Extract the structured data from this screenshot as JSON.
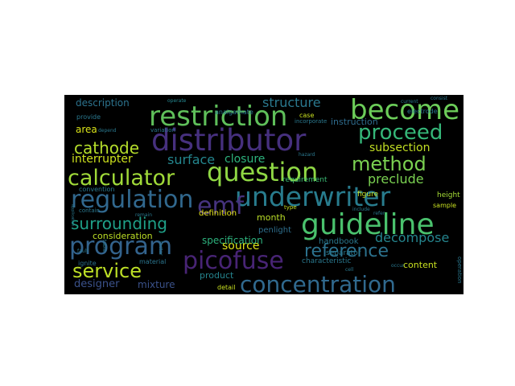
{
  "palette": {
    "background": "#000000",
    "green": "#5ec962",
    "teal": "#21918c",
    "blue": "#3b6a8f",
    "purple": "#482677",
    "deep_purple": "#440154",
    "yellow": "#c8e020"
  },
  "words": [
    {
      "text": "restriction",
      "color": "#5fbf5a"
    },
    {
      "text": "become",
      "color": "#6ccd59"
    },
    {
      "text": "distributor",
      "color": "#46307e"
    },
    {
      "text": "proceed",
      "color": "#35b779"
    },
    {
      "text": "cathode",
      "color": "#b5de2b"
    },
    {
      "text": "method",
      "color": "#7ad151"
    },
    {
      "text": "calculator",
      "color": "#a0da39"
    },
    {
      "text": "question",
      "color": "#8fd744"
    },
    {
      "text": "regulation",
      "color": "#31688e"
    },
    {
      "text": "underwriter",
      "color": "#287c8e"
    },
    {
      "text": "emf",
      "color": "#46337e"
    },
    {
      "text": "guideline",
      "color": "#4ac16d"
    },
    {
      "text": "surrounding",
      "color": "#1fa088"
    },
    {
      "text": "program",
      "color": "#33638d"
    },
    {
      "text": "reference",
      "color": "#2c728e"
    },
    {
      "text": "picofuse",
      "color": "#482475"
    },
    {
      "text": "service",
      "color": "#bddf26"
    },
    {
      "text": "concentration",
      "color": "#30698e"
    },
    {
      "text": "structure",
      "color": "#2a788e"
    },
    {
      "text": "interrupter",
      "color": "#cde11d"
    },
    {
      "text": "surface",
      "color": "#24868e"
    },
    {
      "text": "closure",
      "color": "#2db27d"
    },
    {
      "text": "subsection",
      "color": "#c2df23"
    },
    {
      "text": "preclude",
      "color": "#7ad151"
    },
    {
      "text": "decompose",
      "color": "#25858e"
    },
    {
      "text": "description",
      "color": "#2c738e"
    },
    {
      "text": "area",
      "color": "#d8e219"
    },
    {
      "text": "instruction",
      "color": "#2f6c8e"
    },
    {
      "text": "requirement",
      "color": "#3bbb75"
    },
    {
      "text": "figure",
      "color": "#c2df23"
    },
    {
      "text": "month",
      "color": "#bade28"
    },
    {
      "text": "penlight",
      "color": "#2e6f8e"
    },
    {
      "text": "source",
      "color": "#dde318"
    },
    {
      "text": "specification",
      "color": "#2db27d"
    },
    {
      "text": "handbook",
      "color": "#2a788e"
    },
    {
      "text": "definition",
      "color": "#e5e419"
    },
    {
      "text": "consideration",
      "color": "#bddf26"
    },
    {
      "text": "content",
      "color": "#c8e020"
    },
    {
      "text": "designer",
      "color": "#3b528b"
    },
    {
      "text": "mixture",
      "color": "#3b528b"
    },
    {
      "text": "product",
      "color": "#25848e"
    },
    {
      "text": "characteristic",
      "color": "#2a788e"
    },
    {
      "text": "separator",
      "color": "#2a788e"
    },
    {
      "text": "detail",
      "color": "#c8e020"
    },
    {
      "text": "material",
      "color": "#2b758e"
    },
    {
      "text": "ignite",
      "color": "#2c728e"
    },
    {
      "text": "convention",
      "color": "#2a788e"
    },
    {
      "text": "contain",
      "color": "#2a788e"
    },
    {
      "text": "height",
      "color": "#a5db36"
    },
    {
      "text": "sample",
      "color": "#c8e020"
    },
    {
      "text": "analgamate",
      "color": "#2a788e"
    },
    {
      "text": "provide",
      "color": "#2a788e"
    },
    {
      "text": "operate",
      "color": "#24868e"
    },
    {
      "text": "depend",
      "color": "#2a788e"
    },
    {
      "text": "variation",
      "color": "#2a788e"
    },
    {
      "text": "hazard",
      "color": "#2a788e"
    },
    {
      "text": "incorporate",
      "color": "#2a788e"
    },
    {
      "text": "electrode",
      "color": "#2a788e"
    },
    {
      "text": "case",
      "color": "#c8e020"
    },
    {
      "text": "type",
      "color": "#c8e020"
    },
    {
      "text": "include",
      "color": "#2a788e"
    },
    {
      "text": "refer",
      "color": "#2a788e"
    },
    {
      "text": "factor",
      "color": "#2a788e"
    },
    {
      "text": "occur",
      "color": "#2a788e"
    },
    {
      "text": "remain",
      "color": "#2a788e"
    },
    {
      "text": "table",
      "color": "#2a788e"
    },
    {
      "text": "cell",
      "color": "#2a788e"
    },
    {
      "text": "current",
      "color": "#2a788e"
    },
    {
      "text": "consist",
      "color": "#2a788e"
    },
    {
      "text": "fault",
      "color": "#2a788e"
    },
    {
      "text": "operation",
      "color": "#2a788e"
    },
    {
      "text": "application",
      "color": "#2a788e"
    }
  ]
}
